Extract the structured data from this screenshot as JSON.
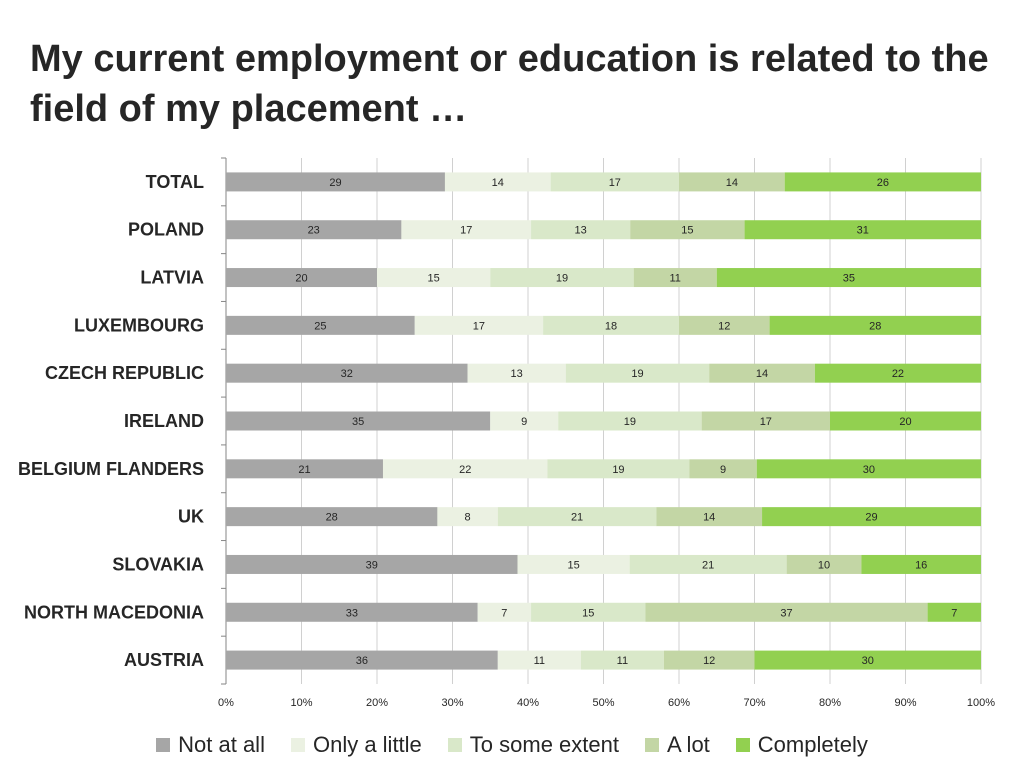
{
  "chart_data": {
    "type": "bar",
    "orientation": "horizontal",
    "stacked": true,
    "percent_stacked": true,
    "title": "My current employment or education is related to the field of my placement …",
    "categories": [
      "TOTAL",
      "POLAND",
      "LATVIA",
      "LUXEMBOURG",
      "CZECH REPUBLIC",
      "IRELAND",
      "BELGIUM FLANDERS",
      "UK",
      "SLOVAKIA",
      "NORTH MACEDONIA",
      "AUSTRIA"
    ],
    "series": [
      {
        "name": "Not at all",
        "color": "#a6a6a6",
        "values": [
          29,
          23,
          20,
          25,
          32,
          35,
          21,
          28,
          39,
          33,
          36
        ]
      },
      {
        "name": "Only a little",
        "color": "#ebf1e2",
        "values": [
          14,
          17,
          15,
          17,
          13,
          9,
          22,
          8,
          15,
          7,
          11
        ]
      },
      {
        "name": "To some extent",
        "color": "#d9e8c9",
        "values": [
          17,
          13,
          19,
          18,
          19,
          19,
          19,
          21,
          21,
          15,
          11
        ]
      },
      {
        "name": "A lot",
        "color": "#c3d6a5",
        "values": [
          14,
          15,
          11,
          12,
          14,
          17,
          9,
          14,
          10,
          37,
          12
        ]
      },
      {
        "name": "Completely",
        "color": "#92d050",
        "values": [
          26,
          31,
          35,
          28,
          22,
          20,
          30,
          29,
          16,
          7,
          30
        ]
      }
    ],
    "xaxis_ticks": [
      "0%",
      "10%",
      "20%",
      "30%",
      "40%",
      "50%",
      "60%",
      "70%",
      "80%",
      "90%",
      "100%"
    ],
    "xlim": [
      0,
      100
    ],
    "grid": "vertical",
    "legend_position": "bottom"
  }
}
